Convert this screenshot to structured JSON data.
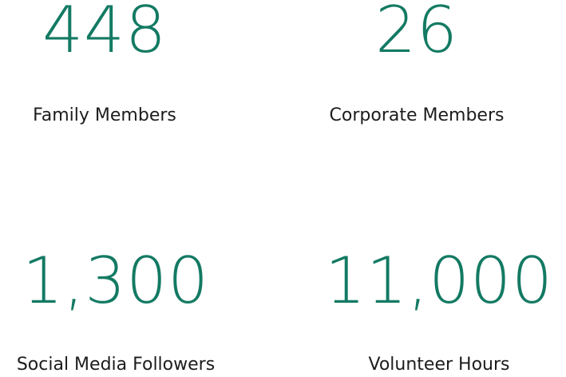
{
  "stats": [
    {
      "value": "448",
      "label": "Family Members"
    },
    {
      "value": "26",
      "label": "Corporate Members"
    },
    {
      "value": "1,300",
      "label": "Social Media Followers"
    },
    {
      "value": "11,000",
      "label": "Volunteer Hours"
    }
  ]
}
